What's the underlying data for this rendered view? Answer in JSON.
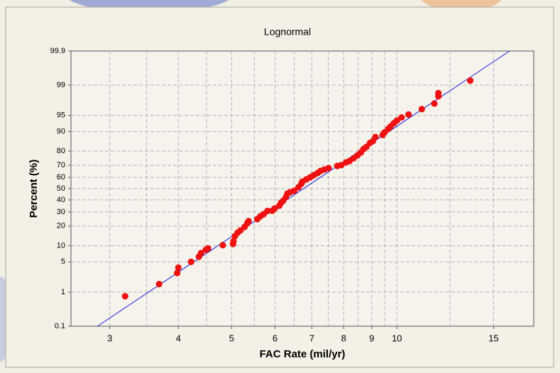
{
  "chart_data": {
    "type": "probability",
    "title": "Lognormal",
    "x_label": "FAC Rate (mil/yr)",
    "y_label": "Percent (%)",
    "xscale": "log",
    "yscale": "normal-probability",
    "xlim": [
      2.55,
      17.75
    ],
    "ylim": [
      0.1,
      99.9
    ],
    "xticks": [
      3,
      4,
      5,
      6,
      7,
      8,
      9,
      10,
      15
    ],
    "xminorticks": [
      3.5,
      4.5,
      5.5,
      6.5,
      7.5,
      8.5,
      9.5,
      12.5
    ],
    "yticks": [
      0.1,
      1,
      5,
      10,
      20,
      30,
      40,
      50,
      60,
      70,
      80,
      90,
      95,
      99,
      99.9
    ],
    "grid": true,
    "point_color": "#ee1111",
    "fit_color": "#1a1adc",
    "fit_line": {
      "x": [
        2.85,
        16.03
      ],
      "y": [
        0.1,
        99.9
      ]
    },
    "x": [
      3.2,
      3.69,
      3.98,
      4.0,
      4.22,
      4.36,
      4.4,
      4.49,
      4.53,
      4.82,
      5.03,
      5.04,
      5.07,
      5.13,
      5.19,
      5.28,
      5.34,
      5.37,
      5.57,
      5.64,
      5.72,
      5.81,
      5.93,
      5.99,
      6.11,
      6.15,
      6.21,
      6.28,
      6.32,
      6.39,
      6.5,
      6.62,
      6.7,
      6.73,
      6.84,
      6.95,
      7.05,
      7.17,
      7.26,
      7.38,
      7.51,
      7.79,
      7.92,
      8.08,
      8.2,
      8.34,
      8.48,
      8.6,
      8.7,
      8.8,
      8.93,
      9.04,
      9.14,
      9.42,
      9.5,
      9.64,
      9.74,
      9.87,
      10.0,
      10.2,
      10.5,
      11.1,
      11.7,
      11.9,
      11.9,
      13.6
    ],
    "values": [
      0.78,
      1.6,
      2.9,
      3.8,
      5.0,
      6.3,
      7.4,
      8.5,
      9.0,
      10.2,
      10.7,
      11.9,
      14.3,
      16.1,
      17.4,
      19.5,
      21.8,
      23.3,
      24.7,
      26.7,
      28.3,
      30.8,
      31.0,
      32.8,
      35.1,
      37.5,
      39.3,
      42.5,
      45.6,
      46.8,
      48.1,
      51.3,
      54.4,
      56.3,
      58.2,
      60.0,
      61.8,
      63.7,
      65.5,
      66.6,
      67.8,
      69.5,
      70.1,
      72.2,
      73.3,
      75.3,
      77.3,
      79.2,
      81.4,
      82.6,
      84.7,
      85.7,
      87.7,
      88.6,
      89.7,
      91.0,
      91.9,
      92.9,
      93.7,
      94.5,
      95.2,
      96.3,
      97.2,
      98.1,
      98.4,
      99.24
    ]
  }
}
